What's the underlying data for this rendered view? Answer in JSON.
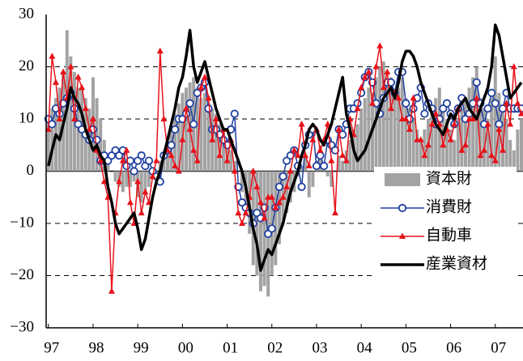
{
  "chart_data": {
    "type": "combo",
    "x": [
      1997.0,
      1997.083,
      1997.167,
      1997.25,
      1997.333,
      1997.417,
      1997.5,
      1997.583,
      1997.667,
      1997.75,
      1997.833,
      1997.917,
      1998.0,
      1998.083,
      1998.167,
      1998.25,
      1998.333,
      1998.417,
      1998.5,
      1998.583,
      1998.667,
      1998.75,
      1998.833,
      1998.917,
      1999.0,
      1999.083,
      1999.167,
      1999.25,
      1999.333,
      1999.417,
      1999.5,
      1999.583,
      1999.667,
      1999.75,
      1999.833,
      1999.917,
      2000.0,
      2000.083,
      2000.167,
      2000.25,
      2000.333,
      2000.417,
      2000.5,
      2000.583,
      2000.667,
      2000.75,
      2000.833,
      2000.917,
      2001.0,
      2001.083,
      2001.167,
      2001.25,
      2001.333,
      2001.417,
      2001.5,
      2001.583,
      2001.667,
      2001.75,
      2001.833,
      2001.917,
      2002.0,
      2002.083,
      2002.167,
      2002.25,
      2002.333,
      2002.417,
      2002.5,
      2002.583,
      2002.667,
      2002.75,
      2002.833,
      2002.917,
      2003.0,
      2003.083,
      2003.167,
      2003.25,
      2003.333,
      2003.417,
      2003.5,
      2003.583,
      2003.667,
      2003.75,
      2003.833,
      2003.917,
      2004.0,
      2004.083,
      2004.167,
      2004.25,
      2004.333,
      2004.417,
      2004.5,
      2004.583,
      2004.667,
      2004.75,
      2004.833,
      2004.917,
      2005.0,
      2005.083,
      2005.167,
      2005.25,
      2005.333,
      2005.417,
      2005.5,
      2005.583,
      2005.667,
      2005.75,
      2005.833,
      2005.917,
      2006.0,
      2006.083,
      2006.167,
      2006.25,
      2006.333,
      2006.417,
      2006.5,
      2006.583,
      2006.667,
      2006.75,
      2006.833,
      2006.917,
      2007.0,
      2007.083,
      2007.167,
      2007.25,
      2007.333,
      2007.417,
      2007.5,
      2007.583
    ],
    "series": [
      {
        "name": "資本財",
        "type": "bar",
        "color": "#a3a3a3",
        "values": [
          10,
          12,
          14,
          16,
          19,
          27,
          22,
          19,
          16,
          16,
          14,
          12,
          18,
          14,
          10,
          6,
          3,
          0,
          -2,
          -3,
          -4,
          -3,
          -3,
          -2,
          -5,
          -6,
          -4,
          -3,
          -1,
          0,
          2,
          3,
          5,
          8,
          11,
          13,
          15,
          16,
          17,
          18,
          16,
          14,
          15,
          13,
          12,
          11,
          9,
          8,
          6,
          4,
          2,
          0,
          -4,
          -8,
          -12,
          -18,
          -20,
          -23,
          -22,
          -24,
          -20,
          -18,
          -14,
          -10,
          -8,
          -6,
          -4,
          -1,
          1,
          3,
          -5,
          -3,
          2,
          5,
          1,
          -1,
          -3,
          0,
          3,
          2,
          4,
          6,
          8,
          9,
          12,
          14,
          16,
          15,
          18,
          20,
          21,
          17,
          18,
          15,
          16,
          18,
          14,
          12,
          10,
          8,
          6,
          8,
          10,
          12,
          14,
          16,
          12,
          10,
          8,
          6,
          10,
          12,
          14,
          16,
          18,
          20,
          14,
          12,
          10,
          14,
          22,
          15,
          12,
          10,
          6,
          4,
          8,
          10
        ]
      },
      {
        "name": "消費財",
        "type": "line",
        "marker": "circle",
        "color": "#1f3f9f",
        "values": [
          10,
          9,
          12,
          11,
          13,
          14,
          15,
          12,
          9,
          8,
          7,
          6,
          8,
          6,
          2,
          3,
          2,
          3,
          4,
          3,
          4,
          1,
          2,
          0,
          2,
          3,
          1,
          2,
          0,
          -1,
          -2,
          3,
          4,
          5,
          8,
          10,
          10,
          11,
          13,
          9,
          15,
          16,
          17,
          12,
          8,
          8,
          7,
          6,
          5,
          8,
          11,
          -3,
          -6,
          -7,
          -8,
          -10,
          -8,
          -9,
          -7,
          -12,
          -11,
          -7,
          -3,
          -1,
          2,
          3,
          4,
          1,
          -3,
          5,
          7,
          8,
          1,
          3,
          1,
          6,
          5,
          4,
          8,
          7,
          9,
          12,
          12,
          13,
          15,
          18,
          19,
          17,
          13,
          11,
          14,
          17,
          17,
          15,
          19,
          19,
          13,
          10,
          12,
          14,
          16,
          11,
          13,
          12,
          9,
          10,
          12,
          13,
          11,
          9,
          12,
          14,
          10,
          11,
          13,
          17,
          13,
          9,
          12,
          15,
          13,
          9,
          12,
          15,
          12,
          12,
          12,
          12
        ]
      },
      {
        "name": "自動車",
        "type": "line",
        "marker": "triangle",
        "color": "#e8121a",
        "values": [
          8,
          22,
          17,
          10,
          19,
          14,
          20,
          10,
          18,
          16,
          12,
          8,
          10,
          4,
          2,
          -2,
          -5,
          -23,
          -8,
          -2,
          2,
          4,
          -6,
          -10,
          -2,
          -8,
          -4,
          -6,
          -1,
          2,
          23,
          10,
          4,
          3,
          1,
          0,
          6,
          12,
          8,
          4,
          2,
          16,
          18,
          14,
          6,
          10,
          3,
          8,
          2,
          6,
          0,
          -8,
          -10,
          -8,
          -5,
          0,
          -3,
          -6,
          -9,
          -5,
          -5,
          -7,
          -6,
          -5,
          -3,
          0,
          4,
          3,
          9,
          3,
          1,
          6,
          8,
          4,
          6,
          9,
          2,
          -8,
          8,
          3,
          2,
          10,
          7,
          12,
          16,
          18,
          19,
          13,
          20,
          24,
          16,
          19,
          12,
          15,
          14,
          10,
          10,
          8,
          14,
          6,
          6,
          3,
          5,
          9,
          11,
          9,
          5,
          8,
          6,
          9,
          12,
          4,
          5,
          10,
          10,
          14,
          3,
          4,
          9,
          3,
          2,
          8,
          4,
          13,
          9,
          20,
          13,
          11
        ]
      },
      {
        "name": "産業資材",
        "type": "line",
        "marker": null,
        "color": "#000000",
        "values": [
          1,
          4,
          7,
          6,
          9,
          12,
          16,
          14,
          13,
          11,
          8,
          6,
          4,
          5,
          3,
          2,
          -3,
          -6,
          -10,
          -12,
          -11,
          -10,
          -9,
          -8,
          -11,
          -15,
          -13,
          -9,
          -5,
          -2,
          0,
          3,
          6,
          9,
          12,
          16,
          18,
          22,
          27,
          20,
          17,
          19,
          21,
          18,
          15,
          12,
          10,
          8,
          8,
          6,
          4,
          2,
          0,
          -3,
          -7,
          -11,
          -14,
          -19,
          -17,
          -15,
          -16,
          -14,
          -12,
          -10,
          -7,
          -4,
          -2,
          0,
          3,
          5,
          8,
          9,
          8,
          6,
          5,
          7,
          9,
          12,
          15,
          18,
          11,
          8,
          4,
          2,
          3,
          4,
          6,
          8,
          10,
          12,
          14,
          15,
          16,
          14,
          17,
          21,
          23,
          23,
          22,
          20,
          17,
          15,
          13,
          11,
          9,
          8,
          7,
          9,
          11,
          10,
          12,
          13,
          14,
          12,
          11,
          10,
          12,
          14,
          16,
          20,
          28,
          26,
          22,
          18,
          14,
          15,
          16,
          17
        ]
      }
    ],
    "xlim": [
      1996.95,
      2007.62
    ],
    "xticks": [
      {
        "value": 1997,
        "label": "97"
      },
      {
        "value": 1998,
        "label": "98"
      },
      {
        "value": 1999,
        "label": "99"
      },
      {
        "value": 2000,
        "label": "00"
      },
      {
        "value": 2001,
        "label": "01"
      },
      {
        "value": 2002,
        "label": "02"
      },
      {
        "value": 2003,
        "label": "03"
      },
      {
        "value": 2004,
        "label": "04"
      },
      {
        "value": 2005,
        "label": "05"
      },
      {
        "value": 2006,
        "label": "06"
      },
      {
        "value": 2007,
        "label": "07"
      }
    ],
    "ylim": [
      -30,
      30
    ],
    "yticks": [
      {
        "value": -30,
        "label": "−30"
      },
      {
        "value": -20,
        "label": "−20"
      },
      {
        "value": -10,
        "label": "−10"
      },
      0,
      10,
      20,
      30
    ],
    "grid": true,
    "legend": "lower right"
  }
}
